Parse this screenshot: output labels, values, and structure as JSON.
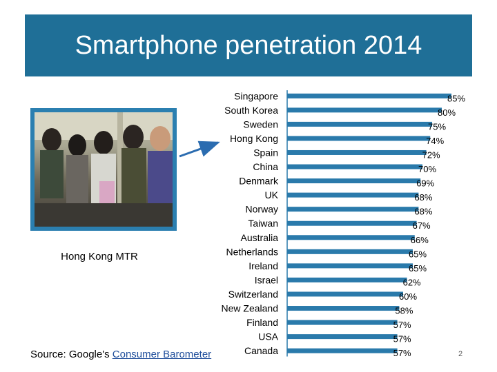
{
  "title": "Smartphone penetration 2014",
  "photo": {
    "caption": "Hong Kong MTR"
  },
  "source": {
    "prefix": "Source: Google's ",
    "link_text": "Consumer Barometer"
  },
  "page_number": "2",
  "colors": {
    "title_bg": "#1f6f97",
    "bar": "#2a7aab",
    "arrow": "#2b6cb0"
  },
  "chart_data": {
    "type": "bar",
    "orientation": "horizontal",
    "title": "Smartphone penetration 2014",
    "categories": [
      "Singapore",
      "South Korea",
      "Sweden",
      "Hong Kong",
      "Spain",
      "China",
      "Denmark",
      "UK",
      "Norway",
      "Taiwan",
      "Australia",
      "Netherlands",
      "Ireland",
      "Israel",
      "Switzerland",
      "New Zealand",
      "Finland",
      "USA",
      "Canada"
    ],
    "values": [
      85,
      80,
      75,
      74,
      72,
      70,
      69,
      68,
      68,
      67,
      66,
      65,
      65,
      62,
      60,
      58,
      57,
      57,
      57
    ],
    "value_labels": [
      "85%",
      "80%",
      "75%",
      "74%",
      "72%",
      "70%",
      "69%",
      "68%",
      "68%",
      "67%",
      "66%",
      "65%",
      "65%",
      "62%",
      "60%",
      "58%",
      "57%",
      "57%",
      "57%"
    ],
    "unit": "%",
    "xlim": [
      0,
      85
    ],
    "highlight": "Hong Kong"
  }
}
